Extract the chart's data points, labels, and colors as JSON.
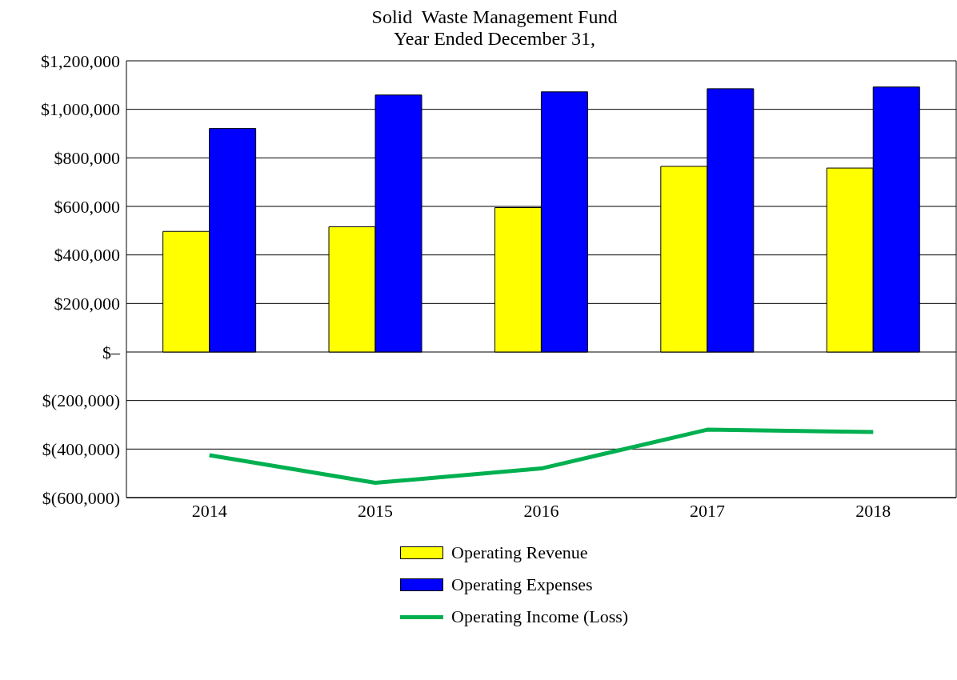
{
  "chart_data": {
    "type": "bar",
    "title": "Solid  Waste Management Fund",
    "subtitle": "Year Ended December 31,",
    "categories": [
      "2014",
      "2015",
      "2016",
      "2017",
      "2018"
    ],
    "series": [
      {
        "name": "Operating Revenue",
        "color": "#ffff00",
        "values": [
          497000,
          516000,
          595000,
          765000,
          758000
        ]
      },
      {
        "name": "Operating Expenses",
        "color": "#0000ff",
        "values": [
          921000,
          1059000,
          1072000,
          1085000,
          1092000
        ]
      },
      {
        "name": "Operating Income (Loss)",
        "type": "line",
        "color": "#00b050",
        "values": [
          -425000,
          -539000,
          -480000,
          -320000,
          -330000
        ]
      }
    ],
    "ylim": [
      -600000,
      1200000
    ],
    "yticks": [
      {
        "value": -600000,
        "label": "$(600,000)"
      },
      {
        "value": -400000,
        "label": "$(400,000)"
      },
      {
        "value": -200000,
        "label": "$(200,000)"
      },
      {
        "value": 0,
        "label": "$–"
      },
      {
        "value": 200000,
        "label": "$200,000"
      },
      {
        "value": 400000,
        "label": "$400,000"
      },
      {
        "value": 600000,
        "label": "$600,000"
      },
      {
        "value": 800000,
        "label": "$800,000"
      },
      {
        "value": 1000000,
        "label": "$1,000,000"
      },
      {
        "value": 1200000,
        "label": "$1,200,000"
      }
    ],
    "grid": "y",
    "legend": "bottom",
    "marker": "none",
    "line_style": "solid"
  }
}
